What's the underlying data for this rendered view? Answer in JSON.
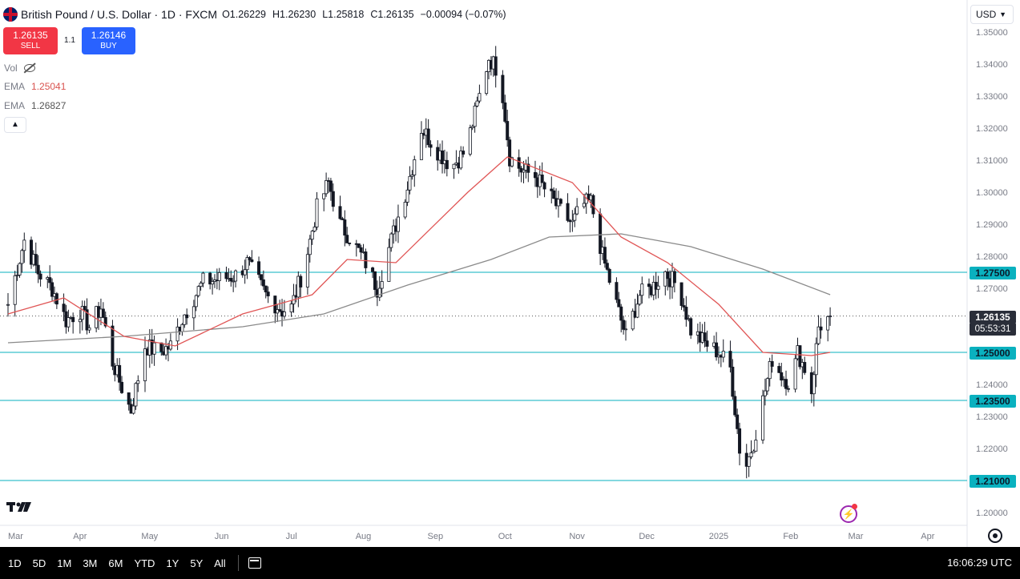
{
  "header": {
    "title": "British Pound / U.S. Dollar · 1D · FXCM",
    "ohlc": [
      {
        "label": "O",
        "value": "1.26229"
      },
      {
        "label": "H",
        "value": "1.26230"
      },
      {
        "label": "L",
        "value": "1.25818"
      },
      {
        "label": "C",
        "value": "1.26135"
      }
    ],
    "change": "−0.00094 (−0.07%)"
  },
  "trade": {
    "sell_price": "1.26135",
    "sell_label": "SELL",
    "spread": "1.1",
    "buy_price": "1.26146",
    "buy_label": "BUY"
  },
  "indicators": {
    "vol_label": "Vol",
    "ema1_label": "EMA",
    "ema1_value": "1.25041",
    "ema2_label": "EMA",
    "ema2_value": "1.26827"
  },
  "currency_label": "USD",
  "price_badge": "1.26135",
  "timer_badge": "05:53:31",
  "range_buttons": [
    "1D",
    "5D",
    "1M",
    "3M",
    "6M",
    "YTD",
    "1Y",
    "5Y",
    "All"
  ],
  "clock": "16:06:29 UTC",
  "colors": {
    "up": "#131722",
    "ema_short": "#e05555",
    "ema_long": "#8a8a8a",
    "level_line": "#0ab1bf",
    "sell": "#f23645",
    "buy": "#2962ff"
  },
  "icons": [
    "uk-flag-icon",
    "eye-off-icon",
    "chevron-up-icon",
    "chevron-down-icon",
    "tradingview-logo",
    "bolt-icon",
    "settings-icon",
    "calendar-icon"
  ],
  "chart_data": {
    "type": "candlestick",
    "ylim": [
      1.2,
      1.35
    ],
    "y_ticks": [
      "1.35000",
      "1.34000",
      "1.33000",
      "1.32000",
      "1.31000",
      "1.30000",
      "1.29000",
      "1.28000",
      "1.27000",
      "1.26000",
      "1.25000",
      "1.24000",
      "1.23000",
      "1.22000",
      "1.21000",
      "1.20000"
    ],
    "x_ticks": [
      "Mar",
      "Apr",
      "May",
      "Jun",
      "Jul",
      "Aug",
      "Sep",
      "Oct",
      "Nov",
      "Dec",
      "2025",
      "Feb",
      "Mar",
      "Apr"
    ],
    "x_tick_dates": [
      "2024-03-01",
      "2024-04-01",
      "2024-05-01",
      "2024-06-01",
      "2024-07-01",
      "2024-08-01",
      "2024-09-01",
      "2024-10-01",
      "2024-11-01",
      "2024-12-01",
      "2025-01-01",
      "2025-02-01",
      "2025-03-01",
      "2025-04-01"
    ],
    "x_range": [
      "2024-03-01",
      "2025-04-19"
    ],
    "horizontal_levels": [
      {
        "value": 1.275,
        "label": "1.27500"
      },
      {
        "value": 1.25,
        "label": "1.25000"
      },
      {
        "value": 1.235,
        "label": "1.23500"
      },
      {
        "value": 1.21,
        "label": "1.21000"
      }
    ],
    "current_price": 1.26135,
    "closes": [
      {
        "date": "2024-03-01",
        "close": 1.265
      },
      {
        "date": "2024-03-08",
        "close": 1.285
      },
      {
        "date": "2024-03-14",
        "close": 1.275
      },
      {
        "date": "2024-03-20",
        "close": 1.27
      },
      {
        "date": "2024-03-26",
        "close": 1.26
      },
      {
        "date": "2024-04-01",
        "close": 1.263
      },
      {
        "date": "2024-04-05",
        "close": 1.258
      },
      {
        "date": "2024-04-10",
        "close": 1.264
      },
      {
        "date": "2024-04-15",
        "close": 1.247
      },
      {
        "date": "2024-04-21",
        "close": 1.235
      },
      {
        "date": "2024-04-23",
        "close": 1.232
      },
      {
        "date": "2024-04-29",
        "close": 1.252
      },
      {
        "date": "2024-05-05",
        "close": 1.25
      },
      {
        "date": "2024-05-10",
        "close": 1.252
      },
      {
        "date": "2024-05-16",
        "close": 1.262
      },
      {
        "date": "2024-05-24",
        "close": 1.272
      },
      {
        "date": "2024-06-01",
        "close": 1.273
      },
      {
        "date": "2024-06-07",
        "close": 1.274
      },
      {
        "date": "2024-06-12",
        "close": 1.278
      },
      {
        "date": "2024-06-20",
        "close": 1.268
      },
      {
        "date": "2024-06-27",
        "close": 1.263
      },
      {
        "date": "2024-07-01",
        "close": 1.264
      },
      {
        "date": "2024-07-07",
        "close": 1.278
      },
      {
        "date": "2024-07-12",
        "close": 1.295
      },
      {
        "date": "2024-07-17",
        "close": 1.303
      },
      {
        "date": "2024-07-22",
        "close": 1.29
      },
      {
        "date": "2024-07-27",
        "close": 1.285
      },
      {
        "date": "2024-08-02",
        "close": 1.278
      },
      {
        "date": "2024-08-07",
        "close": 1.27
      },
      {
        "date": "2024-08-13",
        "close": 1.285
      },
      {
        "date": "2024-08-20",
        "close": 1.302
      },
      {
        "date": "2024-08-26",
        "close": 1.32
      },
      {
        "date": "2024-09-02",
        "close": 1.313
      },
      {
        "date": "2024-09-08",
        "close": 1.308
      },
      {
        "date": "2024-09-14",
        "close": 1.313
      },
      {
        "date": "2024-09-20",
        "close": 1.33
      },
      {
        "date": "2024-09-24",
        "close": 1.342
      },
      {
        "date": "2024-09-29",
        "close": 1.337
      },
      {
        "date": "2024-10-03",
        "close": 1.311
      },
      {
        "date": "2024-10-08",
        "close": 1.307
      },
      {
        "date": "2024-10-14",
        "close": 1.305
      },
      {
        "date": "2024-10-19",
        "close": 1.3
      },
      {
        "date": "2024-10-24",
        "close": 1.295
      },
      {
        "date": "2024-10-30",
        "close": 1.29
      },
      {
        "date": "2024-11-03",
        "close": 1.296
      },
      {
        "date": "2024-11-07",
        "close": 1.297
      },
      {
        "date": "2024-11-12",
        "close": 1.28
      },
      {
        "date": "2024-11-18",
        "close": 1.265
      },
      {
        "date": "2024-11-22",
        "close": 1.255
      },
      {
        "date": "2024-11-28",
        "close": 1.268
      },
      {
        "date": "2024-12-03",
        "close": 1.27
      },
      {
        "date": "2024-12-09",
        "close": 1.275
      },
      {
        "date": "2024-12-15",
        "close": 1.27
      },
      {
        "date": "2024-12-20",
        "close": 1.257
      },
      {
        "date": "2024-12-26",
        "close": 1.253
      },
      {
        "date": "2025-01-01",
        "close": 1.25
      },
      {
        "date": "2025-01-06",
        "close": 1.245
      },
      {
        "date": "2025-01-10",
        "close": 1.22
      },
      {
        "date": "2025-01-13",
        "close": 1.215
      },
      {
        "date": "2025-01-16",
        "close": 1.222
      },
      {
        "date": "2025-01-20",
        "close": 1.235
      },
      {
        "date": "2025-01-24",
        "close": 1.248
      },
      {
        "date": "2025-01-28",
        "close": 1.243
      },
      {
        "date": "2025-02-01",
        "close": 1.24
      },
      {
        "date": "2025-02-04",
        "close": 1.25
      },
      {
        "date": "2025-02-07",
        "close": 1.245
      },
      {
        "date": "2025-02-10",
        "close": 1.238
      },
      {
        "date": "2025-02-13",
        "close": 1.258
      },
      {
        "date": "2025-02-18",
        "close": 1.261
      }
    ],
    "ema_short": [
      {
        "date": "2024-03-01",
        "value": 1.262
      },
      {
        "date": "2024-03-25",
        "value": 1.267
      },
      {
        "date": "2024-04-20",
        "value": 1.255
      },
      {
        "date": "2024-05-12",
        "value": 1.252
      },
      {
        "date": "2024-06-10",
        "value": 1.262
      },
      {
        "date": "2024-07-10",
        "value": 1.268
      },
      {
        "date": "2024-07-25",
        "value": 1.279
      },
      {
        "date": "2024-08-15",
        "value": 1.278
      },
      {
        "date": "2024-09-15",
        "value": 1.3
      },
      {
        "date": "2024-10-02",
        "value": 1.311
      },
      {
        "date": "2024-10-30",
        "value": 1.303
      },
      {
        "date": "2024-11-20",
        "value": 1.286
      },
      {
        "date": "2024-12-10",
        "value": 1.278
      },
      {
        "date": "2025-01-01",
        "value": 1.265
      },
      {
        "date": "2025-01-20",
        "value": 1.25
      },
      {
        "date": "2025-02-10",
        "value": 1.249
      },
      {
        "date": "2025-02-18",
        "value": 1.25
      }
    ],
    "ema_long": [
      {
        "date": "2024-03-01",
        "value": 1.253
      },
      {
        "date": "2024-04-20",
        "value": 1.255
      },
      {
        "date": "2024-06-10",
        "value": 1.258
      },
      {
        "date": "2024-07-15",
        "value": 1.262
      },
      {
        "date": "2024-08-20",
        "value": 1.271
      },
      {
        "date": "2024-09-25",
        "value": 1.279
      },
      {
        "date": "2024-10-20",
        "value": 1.286
      },
      {
        "date": "2024-11-20",
        "value": 1.287
      },
      {
        "date": "2024-12-20",
        "value": 1.283
      },
      {
        "date": "2025-01-20",
        "value": 1.276
      },
      {
        "date": "2025-02-18",
        "value": 1.268
      }
    ]
  }
}
